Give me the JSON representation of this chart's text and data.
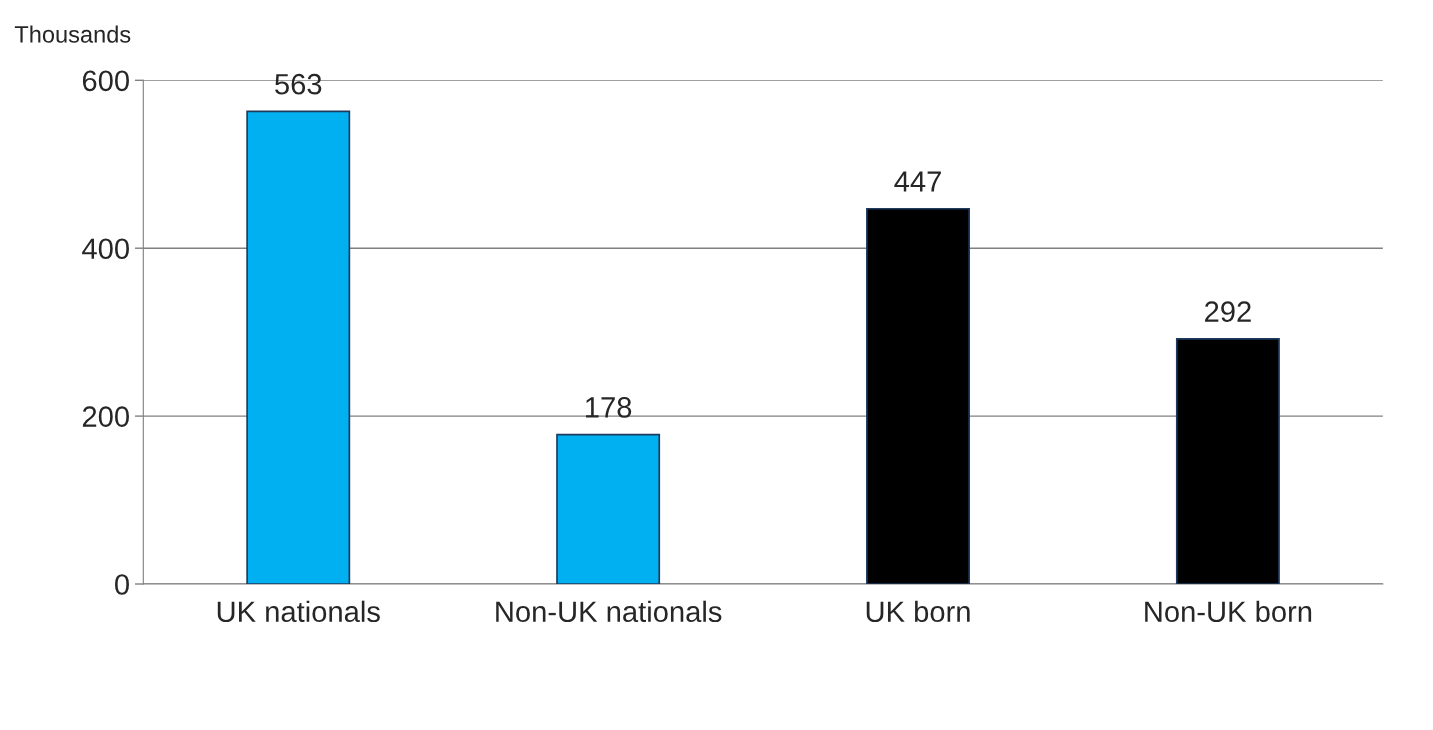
{
  "chart_data": {
    "type": "bar",
    "ylabel": "Thousands",
    "categories": [
      "UK nationals",
      "Non-UK nationals",
      "UK born",
      "Non-UK born"
    ],
    "values": [
      563,
      178,
      447,
      292
    ],
    "colors": [
      "#00b0f0",
      "#00b0f0",
      "#000000",
      "#000000"
    ],
    "ylim": [
      0,
      600
    ],
    "yticks": [
      0,
      200,
      400,
      600
    ],
    "grid": "y",
    "data_labels": true
  }
}
